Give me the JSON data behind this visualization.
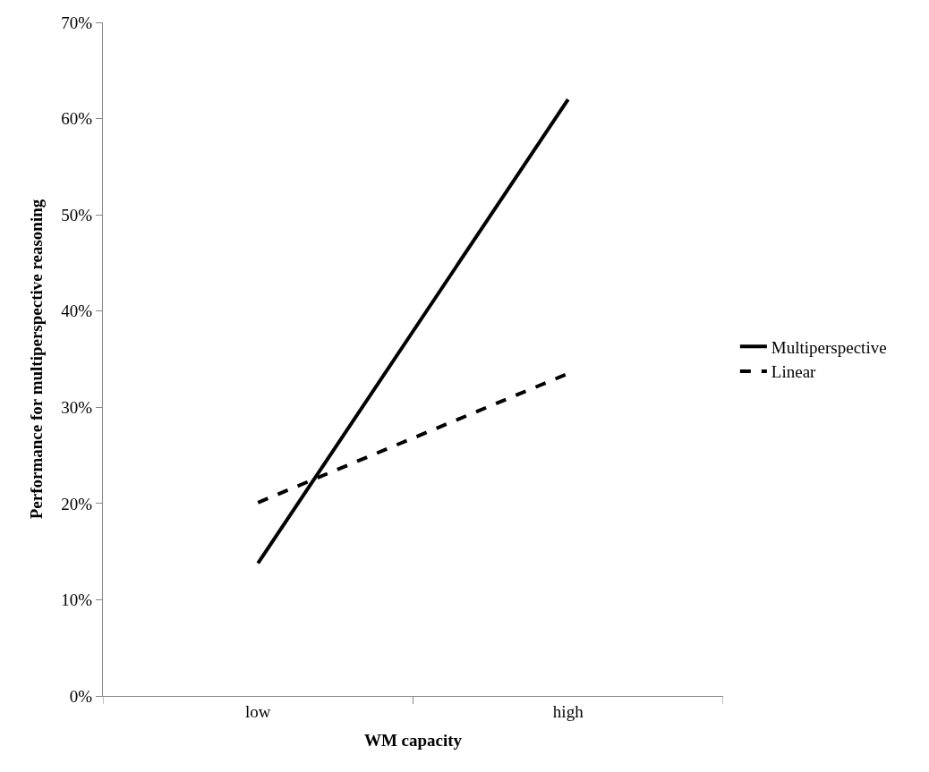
{
  "chart_data": {
    "type": "line",
    "xlabel": "WM capacity",
    "ylabel": "Performance for multiperspective reasoning",
    "categories": [
      "low",
      "high"
    ],
    "series": [
      {
        "name": "Multiperspective",
        "color": "#000000",
        "values": [
          13.8,
          62.0
        ],
        "line_style": "solid"
      },
      {
        "name": "Linear",
        "color": "#000000",
        "values": [
          20.1,
          33.5
        ],
        "line_style": "dashed"
      }
    ],
    "ylim": [
      0,
      70
    ],
    "yticks": [
      {
        "value": 0,
        "label": "0%"
      },
      {
        "value": 10,
        "label": "10%"
      },
      {
        "value": 20,
        "label": "20%"
      },
      {
        "value": 30,
        "label": "30%"
      },
      {
        "value": 40,
        "label": "40%"
      },
      {
        "value": 50,
        "label": "50%"
      },
      {
        "value": 60,
        "label": "60%"
      },
      {
        "value": 70,
        "label": "70%"
      }
    ],
    "legend": "right",
    "marker": "none"
  }
}
